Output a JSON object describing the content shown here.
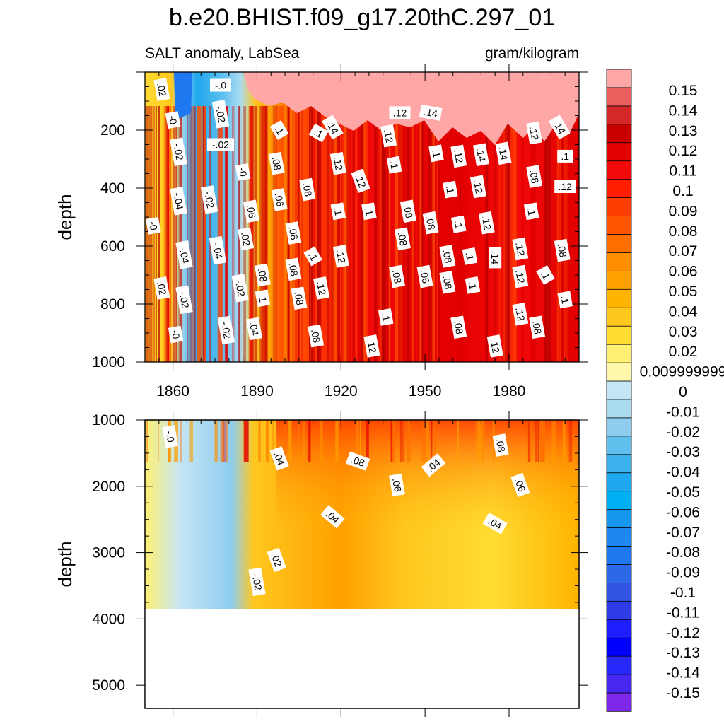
{
  "figure": {
    "title": "b.e20.BHIST.f09_g17.20thC.297_01",
    "left_subtitle": "SALT anomaly, LabSea",
    "right_subtitle": "gram/kilogram"
  },
  "chart_data": [
    {
      "type": "heatmap",
      "name": "upper-panel",
      "xlabel": "",
      "ylabel": "depth",
      "xlim": [
        1850,
        2005
      ],
      "ylim": [
        1000,
        0
      ],
      "xticks": [
        "1860",
        "1890",
        "1920",
        "1950",
        "1980"
      ],
      "yticks": [
        "200",
        "400",
        "600",
        "800",
        "1000"
      ],
      "contour_labels": [
        {
          "text": ".02",
          "x": 1856,
          "y": 60,
          "r": 80
        },
        {
          "text": "-.0",
          "x": 1877,
          "y": 45,
          "r": 0
        },
        {
          "text": "-0",
          "x": 1860,
          "y": 165,
          "r": 80
        },
        {
          "text": "-.02",
          "x": 1877,
          "y": 145,
          "r": 80
        },
        {
          "text": "-.02",
          "x": 1877,
          "y": 250,
          "r": 0
        },
        {
          "text": "-.02",
          "x": 1862,
          "y": 275,
          "r": 80
        },
        {
          "text": "-0",
          "x": 1885,
          "y": 345,
          "r": 80
        },
        {
          "text": "-.04",
          "x": 1862,
          "y": 445,
          "r": 80
        },
        {
          "text": "-.02",
          "x": 1873,
          "y": 440,
          "r": 80
        },
        {
          "text": "-0",
          "x": 1853,
          "y": 530,
          "r": 80
        },
        {
          "text": "-.04",
          "x": 1864,
          "y": 630,
          "r": 80
        },
        {
          "text": "-.04",
          "x": 1876,
          "y": 615,
          "r": 80
        },
        {
          "text": ".02",
          "x": 1886,
          "y": 575,
          "r": 80
        },
        {
          "text": ".02",
          "x": 1856,
          "y": 745,
          "r": 80
        },
        {
          "text": "-.02",
          "x": 1864,
          "y": 785,
          "r": 80
        },
        {
          "text": "-.02",
          "x": 1884,
          "y": 745,
          "r": 80
        },
        {
          "text": "-0",
          "x": 1861,
          "y": 905,
          "r": 80
        },
        {
          "text": "-.02",
          "x": 1879,
          "y": 890,
          "r": 80
        },
        {
          "text": ".04",
          "x": 1889,
          "y": 885,
          "r": 80
        },
        {
          "text": ".1",
          "x": 1898,
          "y": 200,
          "r": 60
        },
        {
          "text": ".1",
          "x": 1912,
          "y": 210,
          "r": 30
        },
        {
          "text": ".14",
          "x": 1917,
          "y": 190,
          "r": 60
        },
        {
          "text": ".08",
          "x": 1897,
          "y": 315,
          "r": 80
        },
        {
          "text": ".12",
          "x": 1919,
          "y": 315,
          "r": 80
        },
        {
          "text": ".12",
          "x": 1927,
          "y": 375,
          "r": 70
        },
        {
          "text": ".12",
          "x": 1941,
          "y": 140,
          "r": 0
        },
        {
          "text": ".14",
          "x": 1952,
          "y": 140,
          "r": 10
        },
        {
          "text": ".12",
          "x": 1937,
          "y": 220,
          "r": 80
        },
        {
          "text": ".1",
          "x": 1954,
          "y": 280,
          "r": 80
        },
        {
          "text": ".1",
          "x": 1939,
          "y": 320,
          "r": 80
        },
        {
          "text": ".12",
          "x": 1962,
          "y": 290,
          "r": 80
        },
        {
          "text": ".14",
          "x": 1970,
          "y": 285,
          "r": 80
        },
        {
          "text": ".14",
          "x": 1978,
          "y": 280,
          "r": 80
        },
        {
          "text": ".12",
          "x": 1989,
          "y": 210,
          "r": 80
        },
        {
          "text": ".14",
          "x": 1998,
          "y": 190,
          "r": 60
        },
        {
          "text": ".1",
          "x": 2000,
          "y": 290,
          "r": 0
        },
        {
          "text": ".08",
          "x": 1989,
          "y": 360,
          "r": 80
        },
        {
          "text": ".12",
          "x": 2000,
          "y": 395,
          "r": 0
        },
        {
          "text": ".1",
          "x": 1959,
          "y": 405,
          "r": 80
        },
        {
          "text": ".12",
          "x": 1969,
          "y": 395,
          "r": 80
        },
        {
          "text": ".06",
          "x": 1898,
          "y": 440,
          "r": 80
        },
        {
          "text": ".08",
          "x": 1908,
          "y": 405,
          "r": 80
        },
        {
          "text": ".06",
          "x": 1888,
          "y": 480,
          "r": 80
        },
        {
          "text": ".1",
          "x": 1919,
          "y": 480,
          "r": 80
        },
        {
          "text": ".1",
          "x": 1930,
          "y": 480,
          "r": 80
        },
        {
          "text": ".08",
          "x": 1944,
          "y": 480,
          "r": 80
        },
        {
          "text": ".1",
          "x": 1988,
          "y": 480,
          "r": 80
        },
        {
          "text": ".08",
          "x": 1952,
          "y": 520,
          "r": 80
        },
        {
          "text": ".1",
          "x": 1962,
          "y": 525,
          "r": 80
        },
        {
          "text": ".12",
          "x": 1972,
          "y": 520,
          "r": 80
        },
        {
          "text": ".06",
          "x": 1903,
          "y": 555,
          "r": 80
        },
        {
          "text": ".08",
          "x": 1942,
          "y": 575,
          "r": 80
        },
        {
          "text": ".12",
          "x": 1984,
          "y": 610,
          "r": 80
        },
        {
          "text": ".08",
          "x": 1999,
          "y": 615,
          "r": 80
        },
        {
          "text": ".1",
          "x": 1910,
          "y": 635,
          "r": 60
        },
        {
          "text": ".12",
          "x": 1920,
          "y": 635,
          "r": 80
        },
        {
          "text": ".08",
          "x": 1958,
          "y": 635,
          "r": 80
        },
        {
          "text": ".1",
          "x": 1966,
          "y": 635,
          "r": 80
        },
        {
          "text": ".14",
          "x": 1975,
          "y": 640,
          "r": 90
        },
        {
          "text": ".08",
          "x": 1903,
          "y": 680,
          "r": 80
        },
        {
          "text": ".08",
          "x": 1892,
          "y": 700,
          "r": 80
        },
        {
          "text": ".08",
          "x": 1940,
          "y": 705,
          "r": 80
        },
        {
          "text": ".06",
          "x": 1950,
          "y": 705,
          "r": 80
        },
        {
          "text": ".08",
          "x": 1958,
          "y": 725,
          "r": 80
        },
        {
          "text": ".12",
          "x": 1984,
          "y": 705,
          "r": 80
        },
        {
          "text": ".1",
          "x": 1993,
          "y": 700,
          "r": 60
        },
        {
          "text": ".1",
          "x": 1967,
          "y": 735,
          "r": 80
        },
        {
          "text": ".12",
          "x": 1913,
          "y": 745,
          "r": 80
        },
        {
          "text": ".1",
          "x": 1892,
          "y": 780,
          "r": 80
        },
        {
          "text": ".08",
          "x": 1905,
          "y": 780,
          "r": 80
        },
        {
          "text": ".1",
          "x": 2000,
          "y": 785,
          "r": 80
        },
        {
          "text": ".1",
          "x": 1936,
          "y": 845,
          "r": 80
        },
        {
          "text": ".12",
          "x": 1984,
          "y": 835,
          "r": 80
        },
        {
          "text": ".08",
          "x": 1962,
          "y": 880,
          "r": 80
        },
        {
          "text": ".08",
          "x": 1990,
          "y": 880,
          "r": 80
        },
        {
          "text": ".08",
          "x": 1911,
          "y": 910,
          "r": 80
        },
        {
          "text": ".12",
          "x": 1931,
          "y": 945,
          "r": 80
        },
        {
          "text": ".12",
          "x": 1975,
          "y": 945,
          "r": 80
        }
      ]
    },
    {
      "type": "heatmap",
      "name": "lower-panel",
      "xlabel": "",
      "ylabel": "depth",
      "xlim": [
        1850,
        2005
      ],
      "ylim": [
        5350,
        1000
      ],
      "ocean_bottom": 3870,
      "yticks": [
        "1000",
        "2000",
        "3000",
        "4000",
        "5000"
      ],
      "contour_labels": [
        {
          "text": "-.0",
          "x": 1859,
          "y": 1250,
          "r": 80
        },
        {
          "text": ".04",
          "x": 1898,
          "y": 1580,
          "r": 70
        },
        {
          "text": ".08",
          "x": 1926,
          "y": 1620,
          "r": 20
        },
        {
          "text": ".04",
          "x": 1953,
          "y": 1680,
          "r": -40
        },
        {
          "text": ".06",
          "x": 1940,
          "y": 1980,
          "r": 80
        },
        {
          "text": ".08",
          "x": 1977,
          "y": 1380,
          "r": 80
        },
        {
          "text": ".06",
          "x": 1984,
          "y": 1980,
          "r": 70
        },
        {
          "text": ".04",
          "x": 1917,
          "y": 2460,
          "r": 40
        },
        {
          "text": ".04",
          "x": 1975,
          "y": 2560,
          "r": 30
        },
        {
          "text": ".02",
          "x": 1897,
          "y": 3110,
          "r": 70
        },
        {
          "text": "-.02",
          "x": 1890,
          "y": 3440,
          "r": 80
        }
      ]
    }
  ],
  "colorbar": {
    "levels": [
      "0.15",
      "0.14",
      "0.13",
      "0.12",
      "0.11",
      "0.1",
      "0.09",
      "0.08",
      "0.07",
      "0.06",
      "0.05",
      "0.04",
      "0.03",
      "0.02",
      "0.009999999",
      "0",
      "-0.01",
      "-0.02",
      "-0.03",
      "-0.04",
      "-0.05",
      "-0.06",
      "-0.07",
      "-0.08",
      "-0.09",
      "-0.1",
      "-0.11",
      "-0.12",
      "-0.13",
      "-0.14",
      "-0.15"
    ],
    "colors": [
      "#FFA7A7",
      "#EB5F5F",
      "#D42727",
      "#C80000",
      "#E30000",
      "#F20A0A",
      "#FF1E00",
      "#FF3D00",
      "#FF5500",
      "#FF6F00",
      "#FF8E00",
      "#FFA000",
      "#FFB400",
      "#FFC81E",
      "#FFDC32",
      "#FFF073",
      "#FFF8AA",
      "#C5E5F4",
      "#AADBF1",
      "#8FCDEF",
      "#5FC0EE",
      "#3DB1EE",
      "#1FA7EF",
      "#00B0F5",
      "#1796F0",
      "#1E87F0",
      "#1E78F0",
      "#2D69E6",
      "#3155E1",
      "#2D3CE6",
      "#1E1EFF",
      "#0000FF",
      "#2828FA",
      "#4628F0",
      "#7D28E8"
    ]
  }
}
